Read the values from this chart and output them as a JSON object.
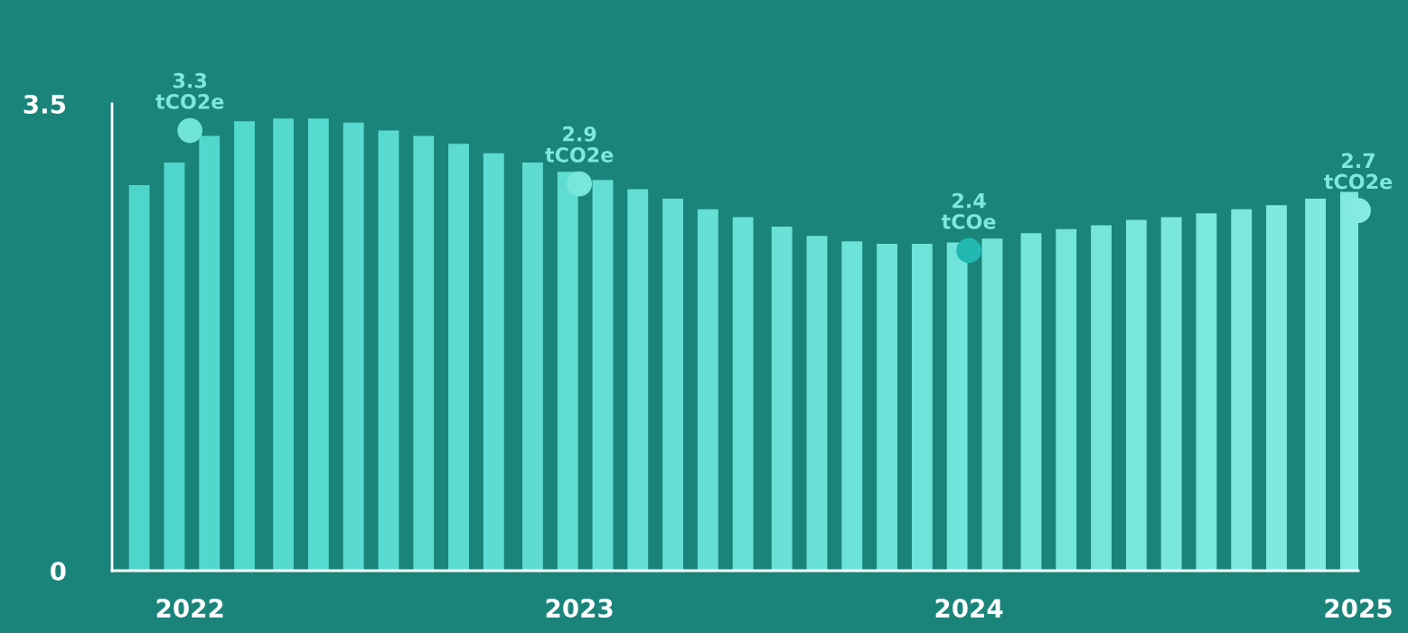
{
  "chart_data": {
    "type": "bar",
    "xlim": [
      2021.8,
      2025.0
    ],
    "xticks": [
      2022,
      2023,
      2024,
      2025
    ],
    "ylim": [
      0,
      3.5
    ],
    "yticks": [
      0,
      3.5
    ],
    "grid": false,
    "legend": false,
    "series": [
      {
        "x": [
          2021.87,
          2021.96,
          2022.05,
          2022.14,
          2022.24,
          2022.33,
          2022.42,
          2022.51,
          2022.6,
          2022.69,
          2022.78,
          2022.88,
          2022.97,
          2023.06,
          2023.15,
          2023.24,
          2023.33,
          2023.42,
          2023.52,
          2023.61,
          2023.7,
          2023.79,
          2023.88,
          2023.97,
          2024.06,
          2024.16,
          2024.25,
          2024.34,
          2024.43,
          2024.52,
          2024.61,
          2024.7,
          2024.79,
          2024.89,
          2024.98
        ],
        "values": [
          2.89,
          3.06,
          3.26,
          3.37,
          3.39,
          3.39,
          3.36,
          3.3,
          3.26,
          3.2,
          3.13,
          3.06,
          2.99,
          2.93,
          2.86,
          2.79,
          2.71,
          2.65,
          2.58,
          2.51,
          2.47,
          2.45,
          2.45,
          2.46,
          2.49,
          2.53,
          2.56,
          2.59,
          2.63,
          2.65,
          2.68,
          2.71,
          2.74,
          2.79,
          2.84
        ],
        "colors": [
          "#4fd6cc",
          "#50d7cd",
          "#52d7cd",
          "#53d8ce",
          "#55d8ce",
          "#56d9cf",
          "#58dad0",
          "#59dad0",
          "#5bdbd1",
          "#5cdbd1",
          "#5ddcd2",
          "#5fdcd2",
          "#60ddd3",
          "#62ded4",
          "#63ded4",
          "#65dfd5",
          "#66dfd5",
          "#67e0d6",
          "#69e1d7",
          "#6ae1d7",
          "#6ce2d8",
          "#6de2d8",
          "#6fe3d9",
          "#70e4da",
          "#72e4da",
          "#73e5db",
          "#74e5db",
          "#76e6dc",
          "#77e7dd",
          "#79e7dd",
          "#7ae8de",
          "#7ce8de",
          "#7de9df",
          "#7ee9df",
          "#80eae0"
        ]
      },
      {
        "type": "scatter",
        "marker": "circle",
        "x": [
          2022,
          2023,
          2024,
          2025
        ],
        "values": [
          3.3,
          2.9,
          2.4,
          2.7
        ],
        "colors": [
          "#6fe3d8",
          "#78e6db",
          "#20b8b0",
          "#85ebe0"
        ],
        "value_labels": [
          "3.3\ntCO2e",
          "2.9\ntCO2e",
          "2.4\ntCOe",
          "2.7\ntCO2e"
        ]
      }
    ]
  }
}
